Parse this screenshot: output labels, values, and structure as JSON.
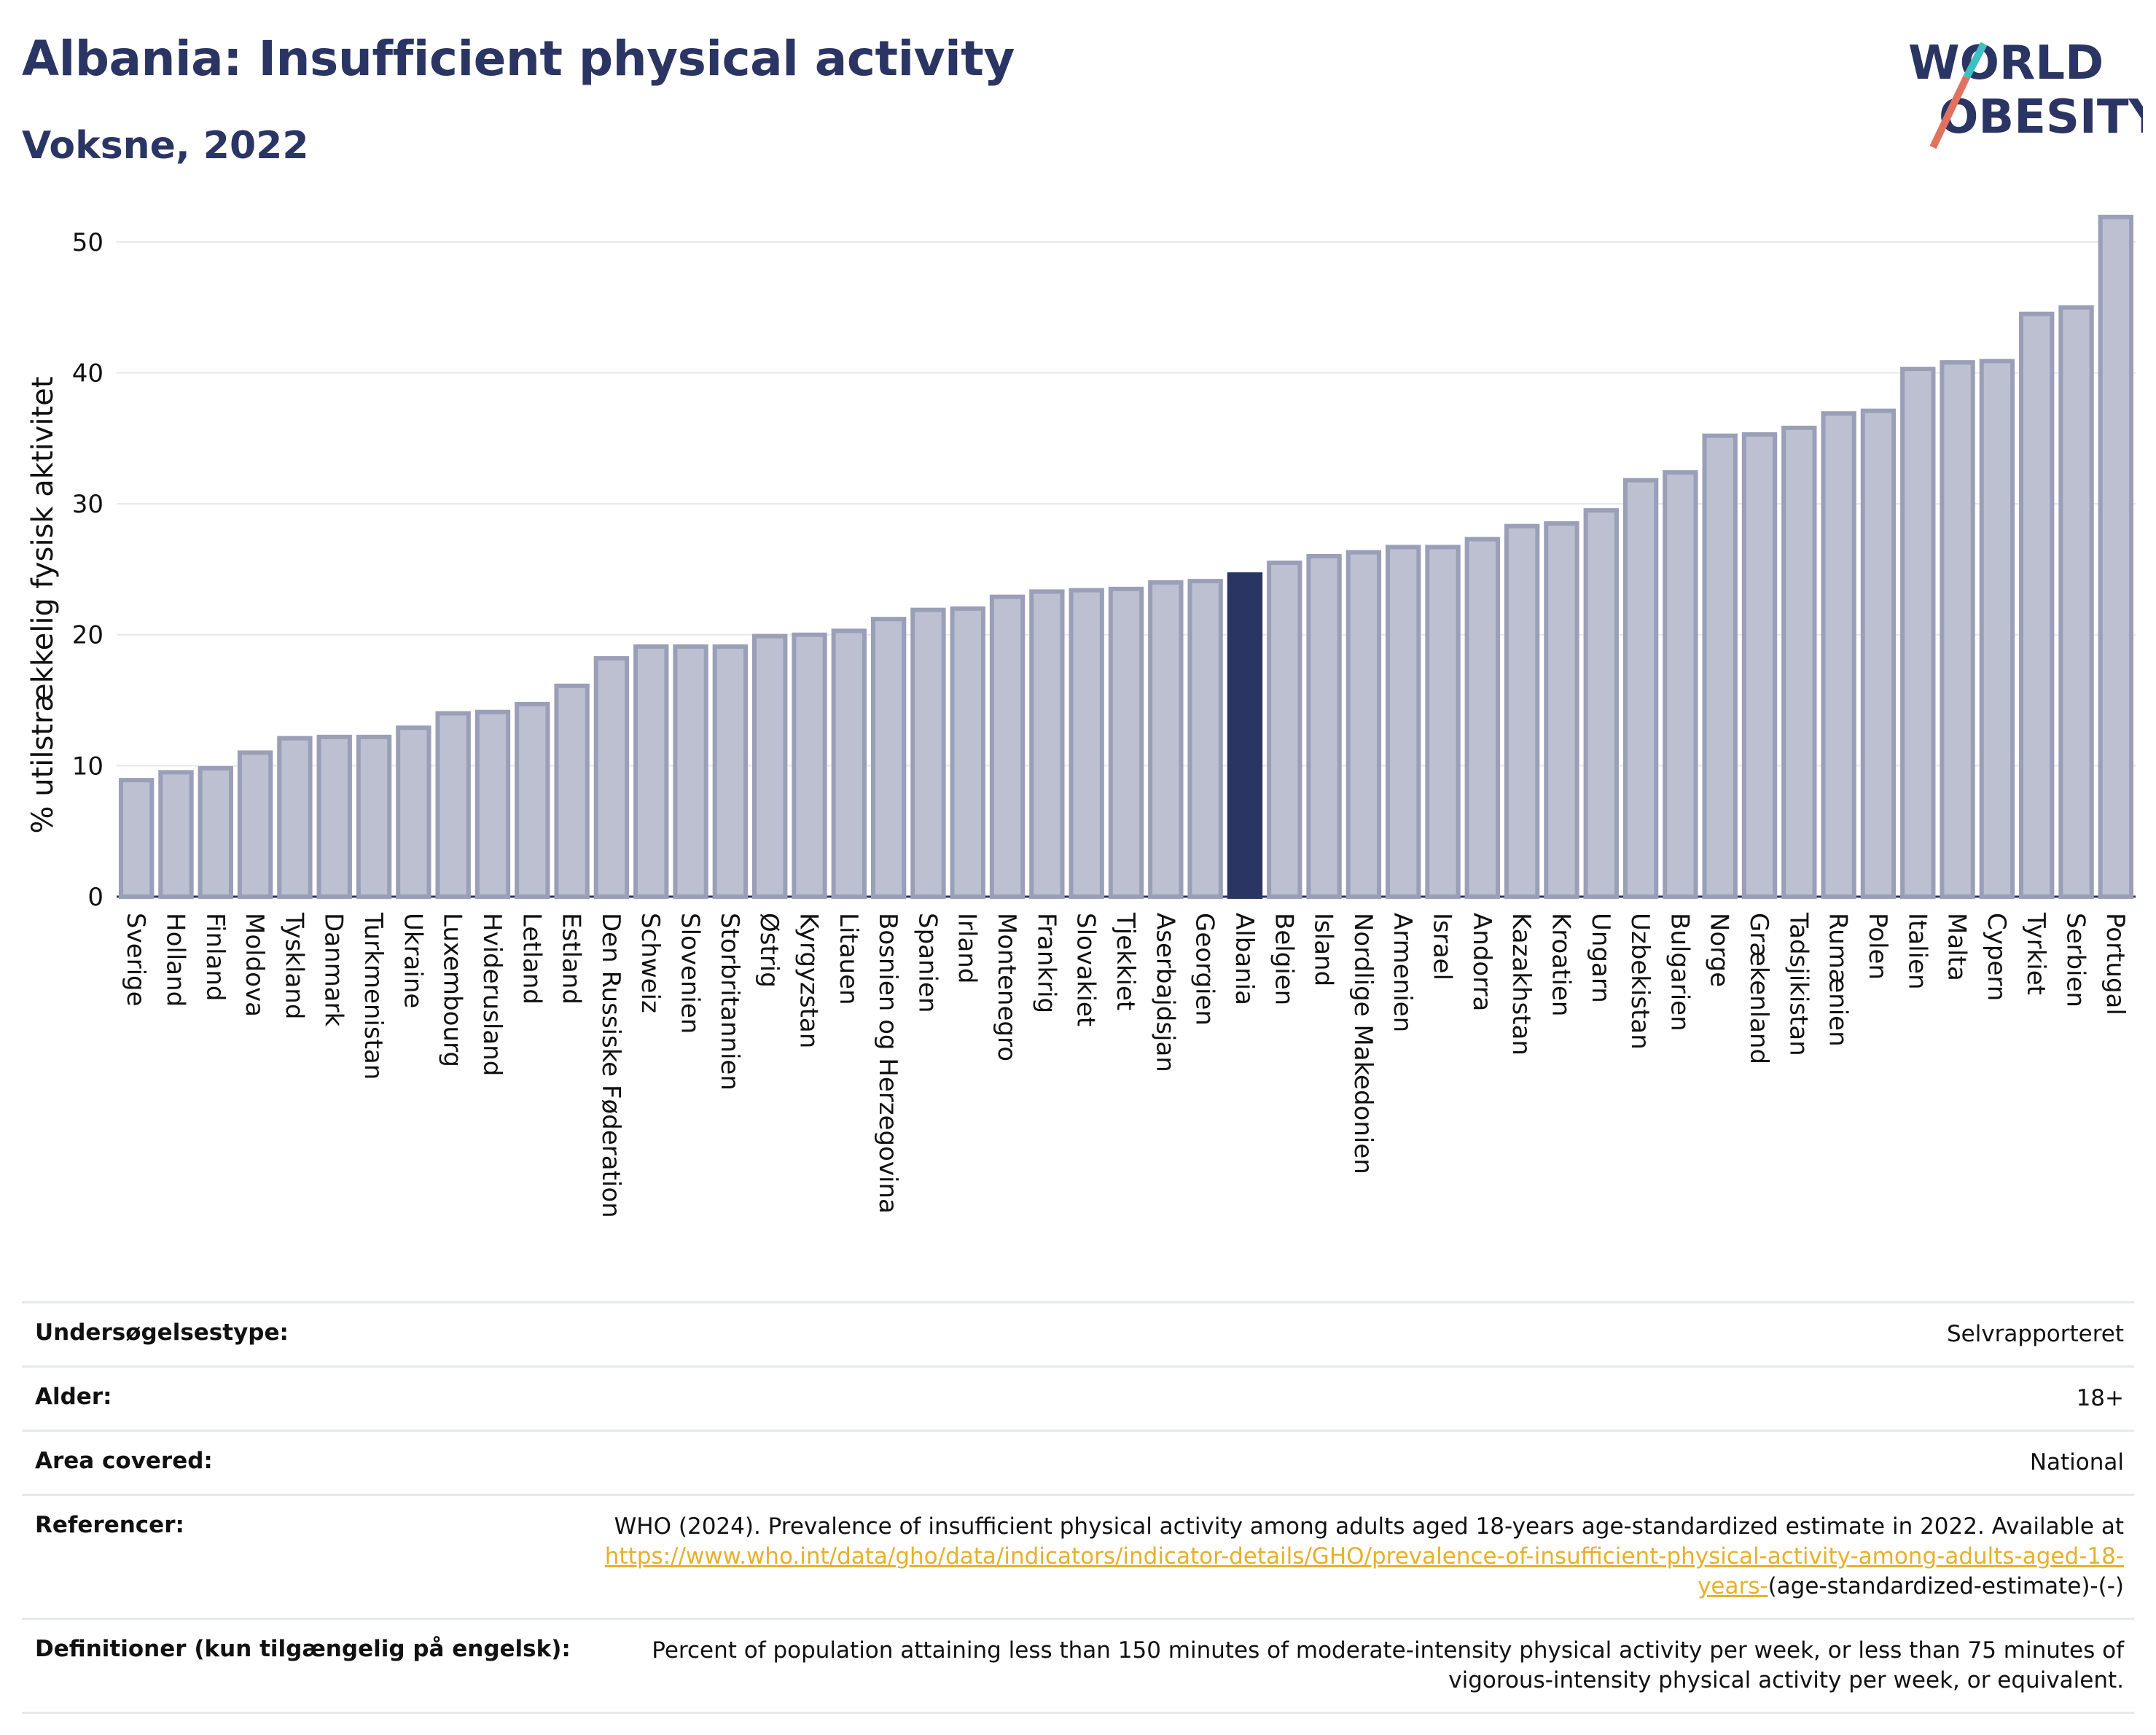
{
  "header": {
    "title": "Albania: Insufficient physical activity",
    "subtitle": "Voksne, 2022"
  },
  "logo": {
    "line1": "WORLD",
    "line2": "OBESITY",
    "text_color": "#2b3563",
    "slash_colors": [
      "#e0735f",
      "#3fbfbf"
    ]
  },
  "colors": {
    "bar": "#bcc0d0",
    "bar_stroke": "#9a9fb8",
    "highlight": "#2b3563",
    "grid": "#e6e8ee"
  },
  "chart_data": {
    "type": "bar",
    "ylabel": "% utilstrækkelig fysisk aktivitet",
    "xlabel": "",
    "ylim": [
      0,
      54
    ],
    "yticks": [
      0,
      10,
      20,
      30,
      40,
      50
    ],
    "grid": true,
    "highlight": "Albania",
    "categories": [
      "Sverige",
      "Holland",
      "Finland",
      "Moldova",
      "Tyskland",
      "Danmark",
      "Turkmenistan",
      "Ukraine",
      "Luxembourg",
      "Hviderusland",
      "Letland",
      "Estland",
      "Den Russiske Føderation",
      "Schweiz",
      "Slovenien",
      "Storbritannien",
      "Østrig",
      "Kyrgyzstan",
      "Litauen",
      "Bosnien og Herzegovina",
      "Spanien",
      "Irland",
      "Montenegro",
      "Frankrig",
      "Slovakiet",
      "Tjekkiet",
      "Aserbajdsjan",
      "Georgien",
      "Albania",
      "Belgien",
      "Island",
      "Nordlige Makedonien",
      "Armenien",
      "Israel",
      "Andorra",
      "Kazakhstan",
      "Kroatien",
      "Ungarn",
      "Uzbekistan",
      "Bulgarien",
      "Norge",
      "Grækenland",
      "Tadsjikistan",
      "Rumænien",
      "Polen",
      "Italien",
      "Malta",
      "Cypern",
      "Tyrkiet",
      "Serbien",
      "Portugal"
    ],
    "values": [
      8.9,
      9.5,
      9.8,
      11.0,
      12.1,
      12.2,
      12.2,
      12.9,
      14.0,
      14.1,
      14.7,
      16.1,
      18.2,
      19.1,
      19.1,
      19.1,
      19.9,
      20.0,
      20.3,
      21.2,
      21.9,
      22.0,
      22.9,
      23.3,
      23.4,
      23.5,
      24.0,
      24.1,
      24.6,
      25.5,
      26.0,
      26.3,
      26.7,
      26.7,
      27.3,
      28.3,
      28.5,
      29.5,
      31.8,
      32.4,
      35.2,
      35.3,
      35.8,
      36.9,
      37.1,
      40.3,
      40.8,
      40.9,
      44.5,
      45.0,
      51.9
    ]
  },
  "details": {
    "survey_type": {
      "label": "Undersøgelsestype:",
      "value": "Selvrapporteret"
    },
    "age": {
      "label": "Alder:",
      "value": "18+"
    },
    "area": {
      "label": "Area covered:",
      "value": "National"
    },
    "references": {
      "label": "Referencer:",
      "text": "WHO (2024). Prevalence of insufficient physical activity among adults aged 18-years age-standardized estimate in 2022. Available at",
      "link1": "https://www.who.int/data/gho/data/indicators/indicator-details/GHO/prevalence-of-insufficient-physical-activity-among-adults-aged-",
      "link2": "18-years-",
      "suffix": "(age-standardized-estimate)-(-)"
    },
    "definitions": {
      "label": "Definitioner (kun tilgængelig på engelsk):",
      "value": "Percent of population attaining less than 150 minutes of moderate-intensity physical activity per week, or less than 75 minutes of vigorous-intensity physical activity per week, or equivalent."
    }
  }
}
